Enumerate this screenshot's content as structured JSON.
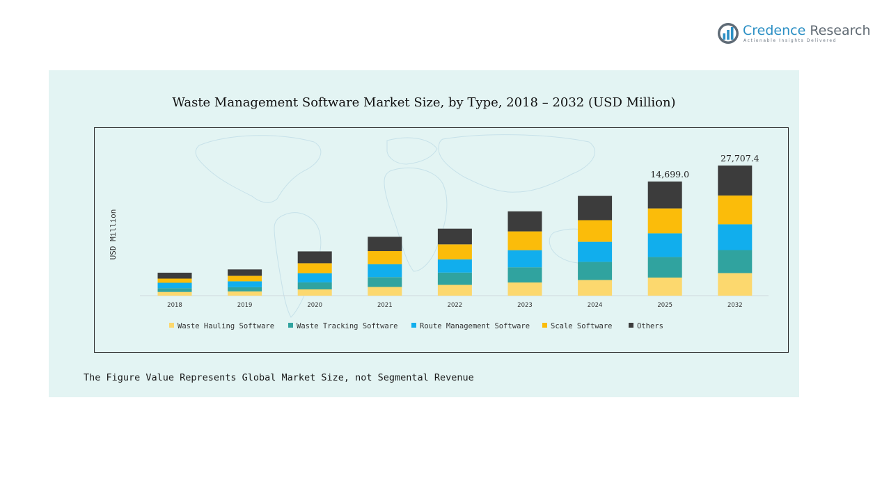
{
  "brand": {
    "name_part1": "Credence",
    "name_part2": "Research",
    "tagline": "Actionable Insights Delivered",
    "primary_color": "#2b8fc4",
    "secondary_color": "#606a73",
    "logo_icon": "bar-chart-circle-icon"
  },
  "footnote": "The Figure Value Represents Global Market Size, not Segmental Revenue",
  "chart_data": {
    "type": "bar",
    "stacked": true,
    "title": "Waste Management Software Market Size, by Type, 2018 – 2032 (USD Million)",
    "xlabel": "",
    "ylabel": "USD Million",
    "ylim": [
      0,
      29500
    ],
    "grid": false,
    "legend": "bottom",
    "categories": [
      "2018",
      "2019",
      "2020",
      "2021",
      "2022",
      "2023",
      "2024",
      "2025",
      "2032"
    ],
    "series": [
      {
        "name": "Waste Hauling Software",
        "color": "#fcd86e",
        "values": [
          650,
          740,
          1100,
          1530,
          1900,
          2320,
          2750,
          3190,
          3970
        ]
      },
      {
        "name": "Waste Tracking Software",
        "color": "#30a39f",
        "values": [
          660,
          740,
          1240,
          1740,
          2170,
          2680,
          3200,
          3620,
          4050
        ]
      },
      {
        "name": "Route Management Software",
        "color": "#11aeed",
        "values": [
          950,
          1050,
          1610,
          2270,
          2320,
          3010,
          3520,
          4160,
          4540
        ]
      },
      {
        "name": "Scale Software",
        "color": "#fbbc0a",
        "values": [
          740,
          950,
          1760,
          2300,
          2630,
          3300,
          3810,
          4380,
          5050
        ]
      },
      {
        "name": "Others",
        "color": "#3c3c3c",
        "values": [
          1040,
          1130,
          2080,
          2520,
          2770,
          3520,
          4270,
          4740,
          5290
        ]
      }
    ],
    "data_labels": [
      {
        "category": "2025",
        "text": "14,699.0"
      },
      {
        "category": "2032",
        "text": "27,707.4"
      }
    ]
  }
}
